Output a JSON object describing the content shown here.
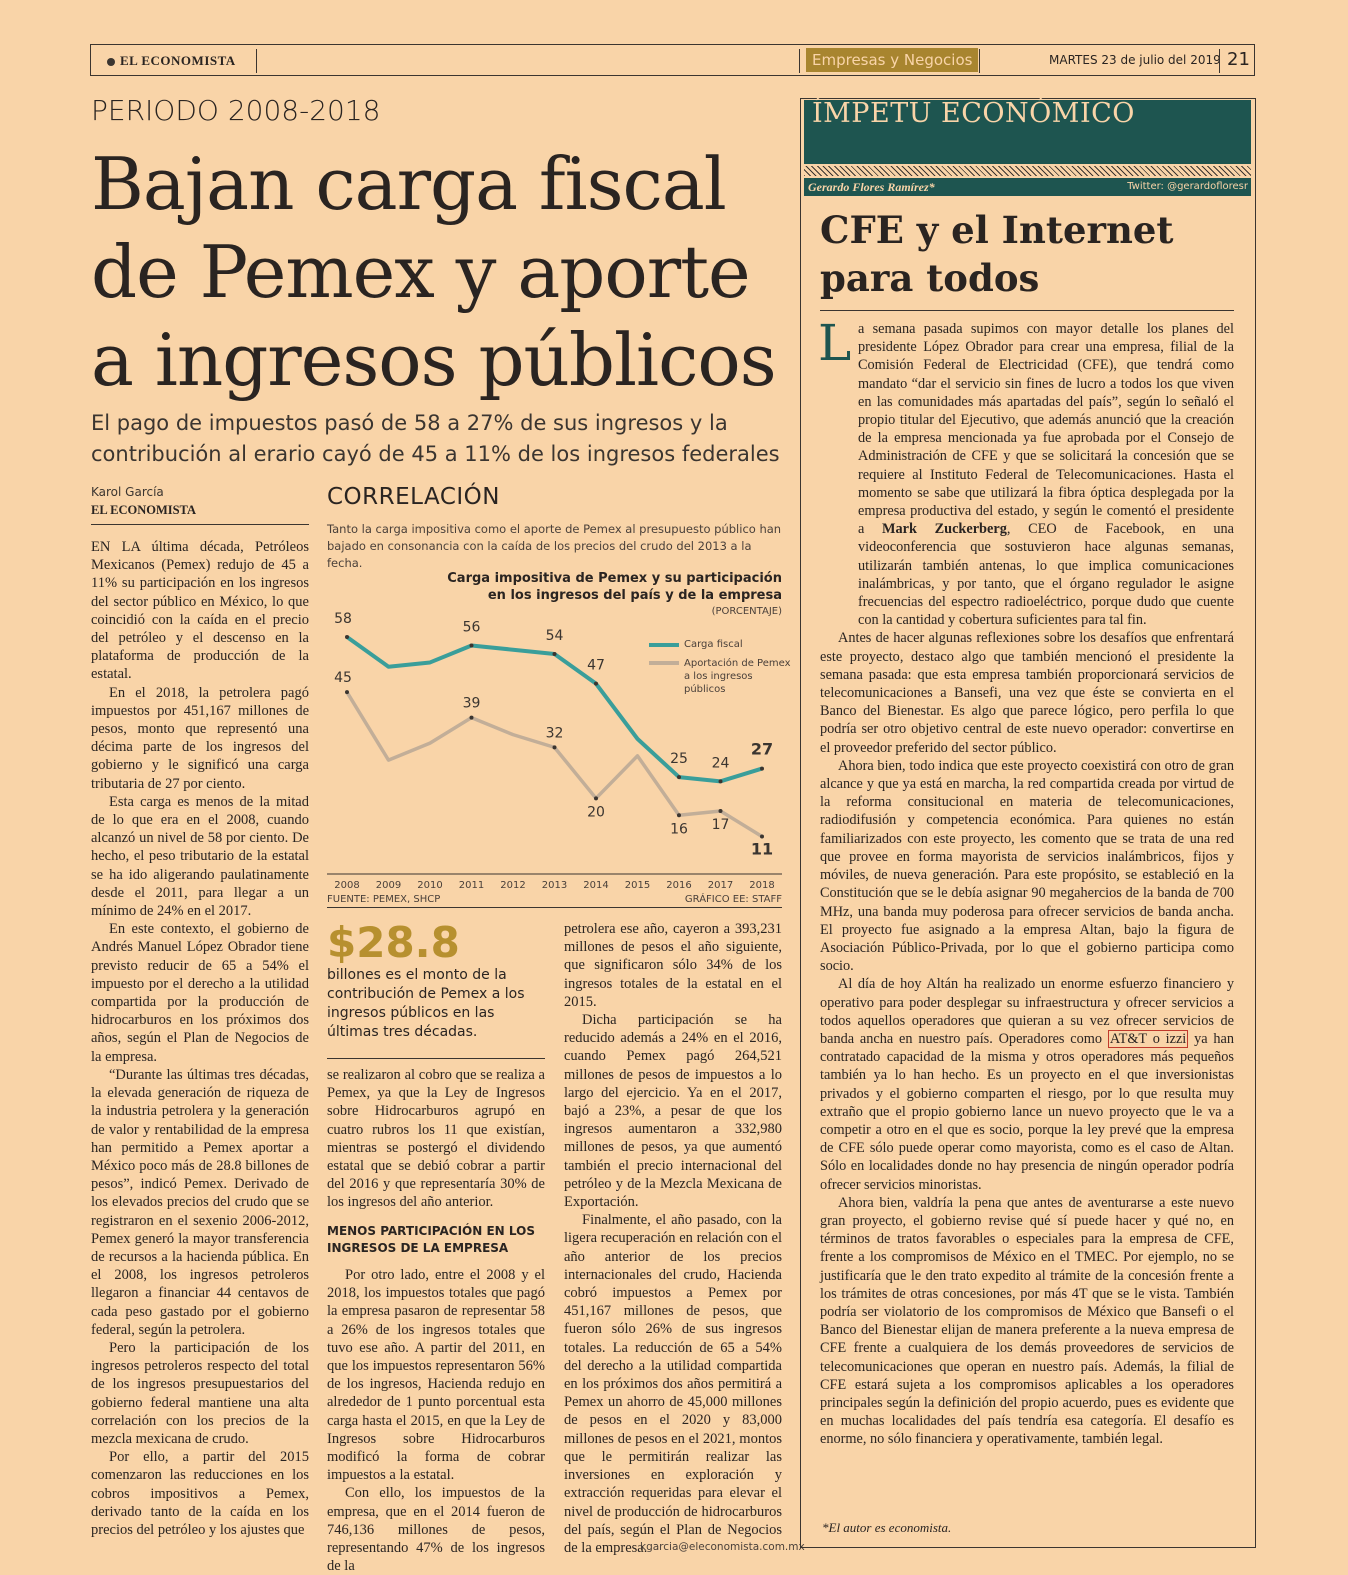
{
  "header": {
    "publication": "EL ECONOMISTA",
    "section": "Empresas y Negocios",
    "day": "MARTES",
    "date": "23 de julio del 2019",
    "page": "21"
  },
  "article": {
    "kicker": "PERIODO 2008-2018",
    "headline": "Bajan carga fiscal de Pemex y aporte a ingresos públicos",
    "dek": "El pago de impuestos pasó de 58 a 27% de sus ingresos y la contribución al erario cayó de 45 a 11% de los ingresos federales",
    "author": "Karol García",
    "author_publication": "EL ECONOMISTA",
    "col1": [
      "EN LA última década, Petróleos Mexicanos (Pemex) redujo de 45 a 11% su participación en los ingresos del sector público en México, lo que coincidió con la caída en el precio del petróleo y el descenso en la plataforma de producción de la estatal.",
      "En el 2018, la petrolera pagó impuestos por 451,167 millones de pesos, monto que representó una décima parte de los ingresos del gobierno y le significó una carga tributaria de 27 por ciento.",
      "Esta carga es menos de la mitad de lo que era en el 2008, cuando alcanzó un nivel de 58 por ciento. De hecho, el peso tributario de la estatal se ha ido aligerando paulatinamente desde el 2011, para llegar a un mínimo de 24% en el 2017.",
      "En este contexto, el gobierno de Andrés Manuel López Obrador tiene previsto reducir de 65 a 54% el impuesto por el derecho a la utilidad compartida por la producción de hidrocarburos en los próximos dos años, según el Plan de Negocios de la empresa.",
      "“Durante las últimas tres décadas, la elevada generación de riqueza de la industria petrolera y la generación de valor y rentabilidad de la empresa han permitido a Pemex aportar a México poco más de 28.8 billones de pesos”, indicó Pemex. Derivado de los elevados precios del crudo que se registraron en el sexenio 2006-2012, Pemex generó la mayor transferencia de recursos a la hacienda pública. En el 2008, los ingresos petroleros llegaron a financiar 44 centavos de cada peso gastado por el gobierno federal, según la petrolera.",
      "Pero la participación de los ingresos petroleros respecto del total de los ingresos presupuestarios del gobierno federal mantiene una alta correlación con los precios de la mezcla mexicana de crudo.",
      "Por ello, a partir del 2015 comenzaron las reducciones en los cobros impositivos a Pemex, derivado tanto de la caída en los precios del petróleo y los ajustes que"
    ],
    "col2": [
      "se realizaron al cobro que se realiza a Pemex, ya que la Ley de Ingresos sobre Hidrocarburos agrupó en cuatro rubros los 11 que existían, mientras se postergó el dividendo estatal que se debió cobrar a partir del 2016 y que representaría 30% de los ingresos del año anterior."
    ],
    "subhead": "MENOS PARTICIPACIÓN EN LOS INGRESOS DE LA EMPRESA",
    "col2b": [
      "Por otro lado, entre el 2008 y el 2018, los impuestos totales que pagó la empresa pasaron de representar 58 a 26% de los ingresos totales que tuvo ese año. A partir del 2011, en que los impuestos representaron 56% de los ingresos, Hacienda redujo en alrededor de 1 punto porcentual esta carga hasta el 2015, en que la Ley de Ingresos sobre Hidrocarburos modificó la forma de cobrar impuestos a la estatal.",
      "Con ello, los impuestos de la empresa, que en el 2014 fueron de 746,136 millones de pesos, representando 47% de los ingresos de la"
    ],
    "col3": [
      "petrolera ese año, cayeron a 393,231 millones de pesos el año siguiente, que significaron sólo 34% de los ingresos totales de la estatal en el 2015.",
      "Dicha participación se ha reducido además a 24% en el 2016, cuando Pemex pagó 264,521 millones de pesos de impuestos a lo largo del ejercicio. Ya en el 2017, bajó a 23%, a pesar de que los ingresos aumentaron a 332,980 millones de pesos, ya que aumentó también el precio internacional del petróleo y de la Mezcla Mexicana de Exportación.",
      "Finalmente, el año pasado, con la ligera recuperación en relación con el año anterior de los precios internacionales del crudo, Hacienda cobró impuestos a Pemex por 451,167 millones de pesos, que fueron sólo 26% de sus ingresos totales. La reducción de 65 a 54% del derecho a la utilidad compartida en los próximos dos años permitirá a Pemex un ahorro de 45,000 millones de pesos en el 2020 y 83,000 millones de pesos en el 2021, montos que le permitirán realizar las inversiones en exploración y extracción requeridas para elevar el nivel de producción de hidrocarburos del país, según el Plan de Negocios de la empresa."
    ],
    "email": "kgarcia@eleconomista.com.mx",
    "highlight_figure": "$28.8",
    "highlight_text": "billones es el monto de la contribución de Pemex a los ingresos públicos en las últimas tres décadas."
  },
  "chart_block": {
    "heading": "CORRELACIÓN",
    "description": "Tanto la carga impositiva como el aporte de Pemex al presupuesto público han bajado en consonancia con la caída de los precios del crudo del 2013 a la fecha.",
    "source": "FUENTE: PEMEX, SHCP",
    "credit": "GRÁFICO EE: STAFF"
  },
  "chart_data": {
    "type": "line",
    "title": "Carga impositiva de Pemex y su participación en los ingresos del país y de la empresa",
    "unit": "(PORCENTAJE)",
    "x": [
      "2008",
      "2009",
      "2010",
      "2011",
      "2012",
      "2013",
      "2014",
      "2015",
      "2016",
      "2017",
      "2018"
    ],
    "series": [
      {
        "name": "Carga fiscal",
        "color": "#3a9e9a",
        "values": [
          58,
          51,
          52,
          56,
          55,
          54,
          47,
          34,
          25,
          24,
          27
        ],
        "labels": [
          "58",
          "",
          "",
          "56",
          "",
          "54",
          "47",
          "",
          "25",
          "24",
          "27"
        ]
      },
      {
        "name": "Aportación de Pemex a los ingresos públicos",
        "color": "#c2ae98",
        "values": [
          45,
          29,
          33,
          39,
          35,
          32,
          20,
          30,
          16,
          17,
          11
        ],
        "labels": [
          "45",
          "",
          "",
          "39",
          "",
          "32",
          "20",
          "",
          "16",
          "17",
          "11"
        ]
      }
    ],
    "ylim": [
      5,
      62
    ],
    "grid": false,
    "legend": "top-right"
  },
  "opinion": {
    "column_name": "ÍMPETU ECONÓMICO",
    "author": "Gerardo Flores Ramírez*",
    "twitter": "Twitter: @gerardofloresr",
    "title": "CFE y el Internet para todos",
    "dropcap": "L",
    "p1_lead": "a semana pasada supimos con mayor detalle los planes del presidente López Obrador para crear una empresa, filial de la Comisión Federal de Electricidad (CFE), que tendrá como mandato “dar el servicio sin fines de lucro a todos los que viven en las comunidades más apartadas del país”, según lo señaló el propio titular del Ejecutivo, que además anunció que la creación de la empresa mencionada ya fue aprobada por el Consejo de Administración de CFE y que se solicitará la concesión que se requiere al Instituto Federal de Telecomunicaciones. Hasta el momento se sabe que utilizará la fibra óptica desplegada por la empresa productiva del estado, y según le comentó el presidente a",
    "p1_bold": "Mark Zuckerberg",
    "p1_tail": ", CEO de Facebook, en una videoconferencia que sostuvieron hace algunas semanas, utilizarán también antenas, lo que implica comunicaciones inalámbricas, y por tanto, que el órgano regulador le asigne frecuencias del espectro radioeléctrico, porque dudo que cuente con la cantidad y cobertura suficientes para tal fin.",
    "p2": "Antes de hacer algunas reflexiones sobre los desafíos que enfrentará este proyecto, destaco algo que también mencionó el presidente la semana pasada: que esta empresa también proporcionará servicios de telecomunicaciones a Bansefi, una vez que éste se convierta en el Banco del Bienestar. Es algo que parece lógico, pero perfila lo que podría ser otro objetivo central de este nuevo operador: convertirse en el proveedor preferido del sector público.",
    "p3": "Ahora bien, todo indica que este proyecto coexistirá con otro de gran alcance y que ya está en marcha, la red compartida creada por virtud de la reforma consitucional en materia de telecomunicaciones, radiodifusión y competencia económica. Para quienes no están familiarizados con este proyecto, les comento que se trata de una red que provee en forma mayorista de servicios inalámbricos, fijos y móviles, de nueva generación. Para este propósito, se estableció en la Constitución que se le debía asignar 90 megahercios de la banda de 700 MHz, una banda muy poderosa para ofrecer servicios de banda ancha. El proyecto fue asignado a la empresa Altan, bajo la figura de Asociación Público-Privada, por lo que el gobierno participa como socio.",
    "p4_lead": "Al día de hoy Altán ha realizado un enorme esfuerzo financiero y operativo para poder desplegar su infraestructura y ofrecer servicios a todos aquellos operadores que quieran a su vez ofrecer servicios de banda ancha en nuestro país. Operadores como",
    "p4_highlight": "AT&T o izzi",
    "p4_tail": " ya han contratado capacidad de la misma y otros operadores más pequeños también ya lo han hecho. Es un proyecto en el que inversionistas privados y el gobierno comparten el riesgo, por lo que resulta muy extraño que el propio gobierno lance un nuevo proyecto que le va a competir a otro en el que es socio, porque la ley prevé que la empresa de CFE sólo puede operar como mayorista, como es el caso de Altan. Sólo en localidades donde no hay presencia de ningún operador podría ofrecer servicios minoristas.",
    "p5": "Ahora bien, valdría la pena que antes de aventurarse a este nuevo gran proyecto, el gobierno revise qué sí puede hacer y qué no, en términos de tratos favorables o especiales para la empresa de CFE, frente a los compromisos de México en el TMEC. Por ejemplo, no se justificaría que le den trato expedito al trámite de la concesión frente a los trámites de otras concesiones, por más 4T que se le vista. También podría ser violatorio de los compromisos de México que Bansefi o el Banco del Bienestar elijan de manera preferente a la nueva empresa de CFE frente a cualquiera de los demás proveedores de servicios de telecomunicaciones que operan en nuestro país. Además, la filial de CFE estará sujeta a los compromisos aplicables a los operadores principales según la definición del propio acuerdo, pues es evidente que en muchas localidades del país tendría esa categoría. El desafío es enorme, no sólo financiera y operativamente, también legal.",
    "footnote": "*El autor es economista."
  }
}
